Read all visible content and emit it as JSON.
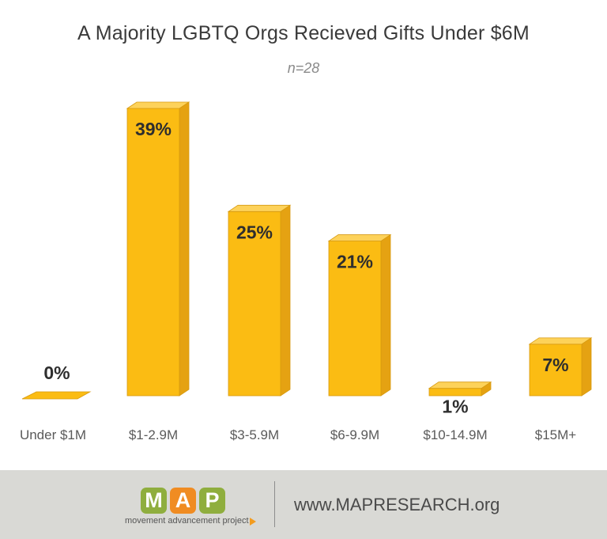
{
  "chart_data": {
    "type": "bar",
    "title": "A Majority LGBTQ Orgs Recieved Gifts Under $6M",
    "subtitle": "n=28",
    "categories": [
      "Under $1M",
      "$1-2.9M",
      "$3-5.9M",
      "$6-9.9M",
      "$10-14.9M",
      "$15M+"
    ],
    "values": [
      0,
      39,
      25,
      21,
      1,
      7
    ],
    "value_labels": [
      "0%",
      "39%",
      "25%",
      "21%",
      "1%",
      "7%"
    ],
    "xlabel": "",
    "ylabel": "",
    "ylim": [
      0,
      39
    ],
    "grid": false,
    "legend": "none",
    "colors": {
      "bar_front": "#fbbc13",
      "bar_side": "#e5a212",
      "bar_top": "#fdd25a",
      "bar_edge": "#d79a10"
    }
  },
  "footer": {
    "logo": {
      "letters": [
        "M",
        "A",
        "P"
      ],
      "letter_colors": [
        "#8fae3e",
        "#f08c22",
        "#8fae3e"
      ],
      "tagline": "movement advancement project"
    },
    "url": "www.MAPRESEARCH.org",
    "background": "#d9d9d5"
  }
}
